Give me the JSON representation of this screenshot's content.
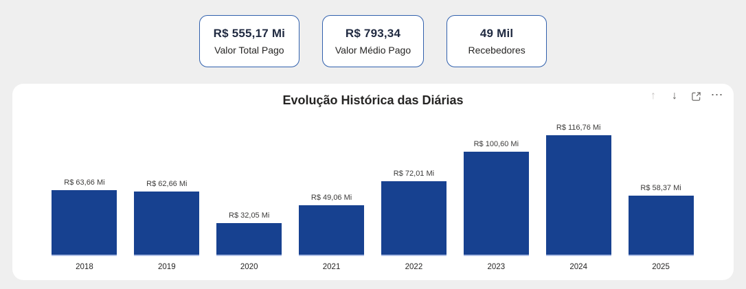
{
  "page": {
    "background_color": "#EFEFEF"
  },
  "kpi_cards": {
    "border_color": "#2F5FAC",
    "items": [
      {
        "value": "R$ 555,17 Mi",
        "label": "Valor Total Pago"
      },
      {
        "value": "R$ 793,34",
        "label": "Valor Médio Pago"
      },
      {
        "value": "49 Mil",
        "label": "Recebedores"
      }
    ]
  },
  "chart_panel": {
    "title": "Evolução Histórica das Diárias",
    "toolbar": {
      "up_arrow_glyph": "↑",
      "down_arrow_glyph": "↓",
      "more_options_glyph": "⋯"
    }
  },
  "chart_data": {
    "type": "bar",
    "title": "Evolução Histórica das Diárias",
    "categories": [
      "2018",
      "2019",
      "2020",
      "2021",
      "2022",
      "2023",
      "2024",
      "2025"
    ],
    "values": [
      63.66,
      62.66,
      32.05,
      49.06,
      72.01,
      100.6,
      116.76,
      58.37
    ],
    "data_labels": [
      "R$ 63,66 Mi",
      "R$ 62,66 Mi",
      "R$ 32,05 Mi",
      "R$ 49,06 Mi",
      "R$ 72,01 Mi",
      "R$ 100,60 Mi",
      "R$ 116,76 Mi",
      "R$ 58,37 Mi"
    ],
    "xlabel": "",
    "ylabel": "",
    "ylim": [
      0,
      120
    ],
    "bar_color": "#174190",
    "baseline_color": "#AEBEE6",
    "grid": false,
    "legend": false,
    "data_labels_position": "above"
  }
}
